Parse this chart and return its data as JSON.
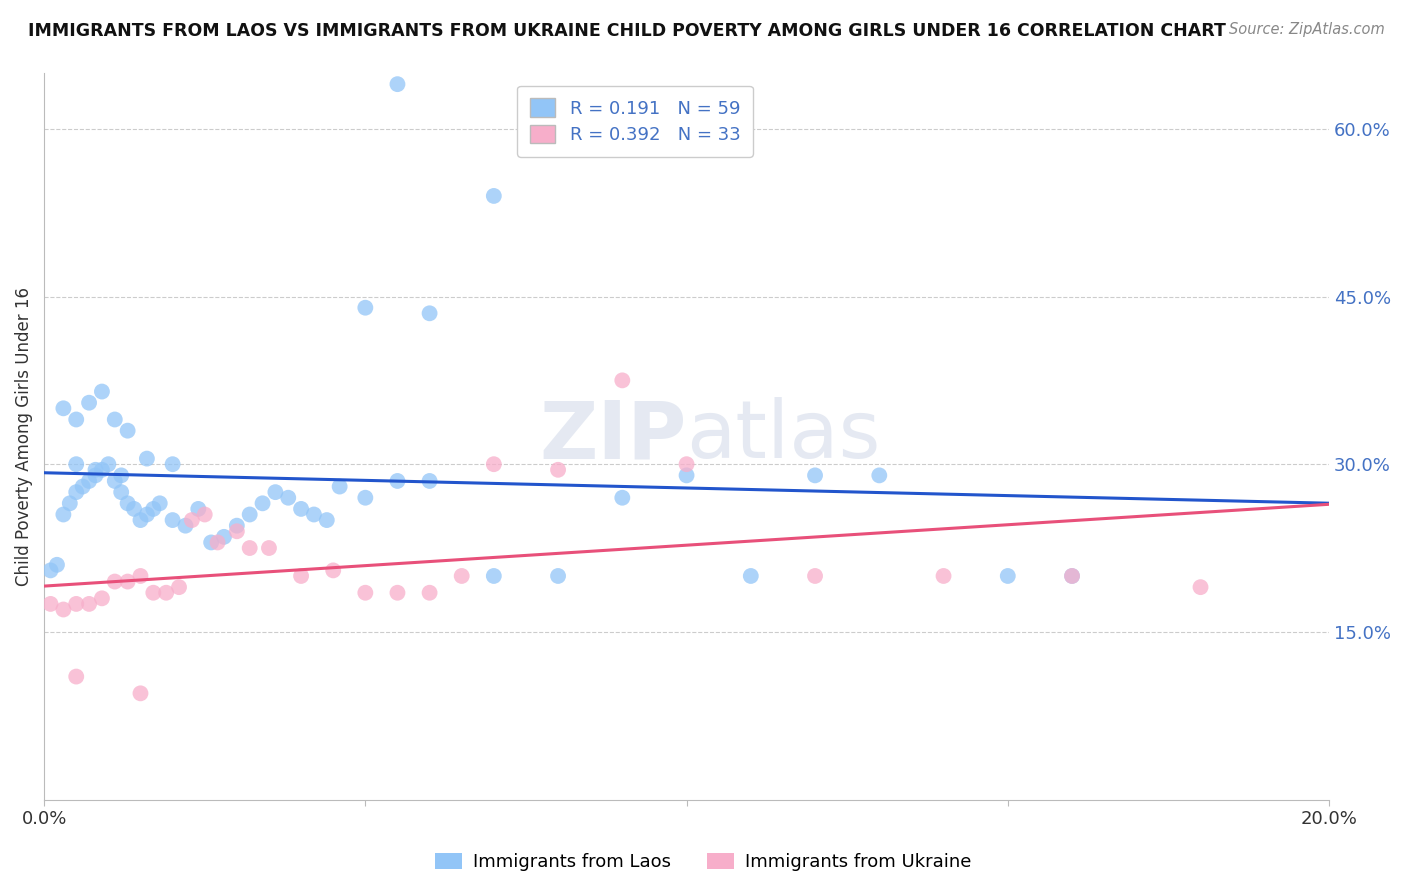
{
  "title": "IMMIGRANTS FROM LAOS VS IMMIGRANTS FROM UKRAINE CHILD POVERTY AMONG GIRLS UNDER 16 CORRELATION CHART",
  "source": "Source: ZipAtlas.com",
  "ylabel": "Child Poverty Among Girls Under 16",
  "xlim": [
    0.0,
    0.2
  ],
  "ylim": [
    0.0,
    0.65
  ],
  "y_ticks_right": [
    0.15,
    0.3,
    0.45,
    0.6
  ],
  "y_tick_labels_right": [
    "15.0%",
    "30.0%",
    "45.0%",
    "60.0%"
  ],
  "laos_color": "#92C5F7",
  "ukraine_color": "#F7AECA",
  "laos_line_color": "#2255CC",
  "ukraine_line_color": "#E8507A",
  "R_laos": 0.191,
  "N_laos": 59,
  "R_ukraine": 0.392,
  "N_ukraine": 33,
  "watermark": "ZIPatlas",
  "background_color": "#FFFFFF",
  "grid_color": "#CCCCCC",
  "laos_scatter_x": [
    0.001,
    0.002,
    0.003,
    0.004,
    0.005,
    0.006,
    0.007,
    0.008,
    0.009,
    0.01,
    0.011,
    0.012,
    0.013,
    0.014,
    0.015,
    0.016,
    0.017,
    0.018,
    0.02,
    0.022,
    0.024,
    0.026,
    0.028,
    0.03,
    0.032,
    0.034,
    0.036,
    0.038,
    0.04,
    0.042,
    0.044,
    0.046,
    0.05,
    0.055,
    0.06,
    0.07,
    0.08,
    0.09,
    0.1,
    0.11,
    0.12,
    0.13,
    0.15,
    0.16,
    0.003,
    0.005,
    0.007,
    0.009,
    0.011,
    0.013,
    0.005,
    0.008,
    0.012,
    0.016,
    0.02,
    0.055,
    0.07,
    0.05,
    0.06
  ],
  "laos_scatter_y": [
    0.205,
    0.21,
    0.255,
    0.265,
    0.275,
    0.28,
    0.285,
    0.29,
    0.295,
    0.3,
    0.285,
    0.275,
    0.265,
    0.26,
    0.25,
    0.255,
    0.26,
    0.265,
    0.25,
    0.245,
    0.26,
    0.23,
    0.235,
    0.245,
    0.255,
    0.265,
    0.275,
    0.27,
    0.26,
    0.255,
    0.25,
    0.28,
    0.27,
    0.285,
    0.285,
    0.2,
    0.2,
    0.27,
    0.29,
    0.2,
    0.29,
    0.29,
    0.2,
    0.2,
    0.35,
    0.34,
    0.355,
    0.365,
    0.34,
    0.33,
    0.3,
    0.295,
    0.29,
    0.305,
    0.3,
    0.64,
    0.54,
    0.44,
    0.435
  ],
  "ukraine_scatter_x": [
    0.001,
    0.003,
    0.005,
    0.007,
    0.009,
    0.011,
    0.013,
    0.015,
    0.017,
    0.019,
    0.021,
    0.023,
    0.025,
    0.027,
    0.03,
    0.032,
    0.035,
    0.04,
    0.045,
    0.05,
    0.055,
    0.06,
    0.065,
    0.07,
    0.08,
    0.09,
    0.1,
    0.12,
    0.14,
    0.16,
    0.18,
    0.005,
    0.015
  ],
  "ukraine_scatter_y": [
    0.175,
    0.17,
    0.175,
    0.175,
    0.18,
    0.195,
    0.195,
    0.2,
    0.185,
    0.185,
    0.19,
    0.25,
    0.255,
    0.23,
    0.24,
    0.225,
    0.225,
    0.2,
    0.205,
    0.185,
    0.185,
    0.185,
    0.2,
    0.3,
    0.295,
    0.375,
    0.3,
    0.2,
    0.2,
    0.2,
    0.19,
    0.11,
    0.095
  ]
}
